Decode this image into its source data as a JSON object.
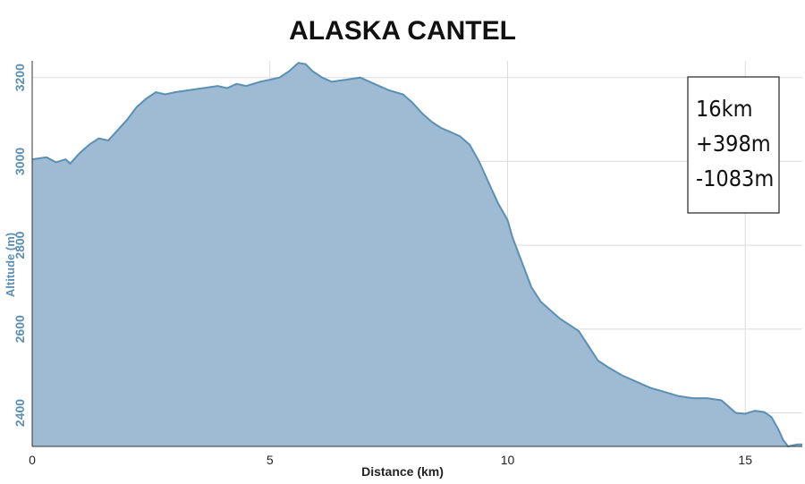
{
  "chart_data": {
    "type": "area",
    "title": "ALASKA CANTEL",
    "xlabel": "Distance (km)",
    "ylabel": "Altitude (m)",
    "xlim": [
      0,
      16.2
    ],
    "ylim": [
      2320,
      3240
    ],
    "x_ticks": [
      0,
      5,
      10,
      15
    ],
    "y_ticks": [
      2400,
      2600,
      2800,
      3000,
      3200
    ],
    "grid": true,
    "fill_color": "#9fbbd3",
    "line_color": "#5b8fb3",
    "stats": {
      "distance": "16km",
      "gain": "+398m",
      "loss": "-1083m"
    },
    "x": [
      0,
      0.3,
      0.5,
      0.7,
      0.8,
      1.0,
      1.2,
      1.4,
      1.6,
      1.8,
      2.0,
      2.2,
      2.4,
      2.6,
      2.8,
      3.0,
      3.3,
      3.6,
      3.9,
      4.1,
      4.3,
      4.5,
      4.8,
      5.0,
      5.2,
      5.4,
      5.6,
      5.75,
      5.9,
      6.1,
      6.3,
      6.6,
      6.9,
      7.2,
      7.5,
      7.8,
      8.0,
      8.2,
      8.4,
      8.6,
      8.8,
      9.0,
      9.2,
      9.4,
      9.6,
      9.7,
      9.8,
      10.0,
      10.1,
      10.3,
      10.5,
      10.7,
      10.9,
      11.1,
      11.3,
      11.5,
      11.7,
      11.9,
      12.1,
      12.4,
      12.7,
      13.0,
      13.3,
      13.6,
      13.9,
      14.2,
      14.5,
      14.8,
      15.0,
      15.2,
      15.4,
      15.55,
      15.7,
      15.8,
      15.9,
      16.1,
      16.2
    ],
    "y": [
      3005,
      3010,
      2998,
      3005,
      2995,
      3020,
      3040,
      3055,
      3050,
      3075,
      3100,
      3130,
      3150,
      3165,
      3160,
      3165,
      3170,
      3175,
      3180,
      3175,
      3185,
      3180,
      3190,
      3195,
      3200,
      3215,
      3235,
      3232,
      3215,
      3200,
      3190,
      3195,
      3200,
      3185,
      3170,
      3160,
      3140,
      3115,
      3095,
      3080,
      3070,
      3060,
      3040,
      3000,
      2950,
      2925,
      2900,
      2860,
      2820,
      2760,
      2700,
      2665,
      2645,
      2625,
      2610,
      2595,
      2560,
      2525,
      2510,
      2490,
      2475,
      2460,
      2450,
      2440,
      2435,
      2435,
      2430,
      2400,
      2398,
      2405,
      2402,
      2390,
      2360,
      2335,
      2320,
      2325,
      2325
    ]
  }
}
